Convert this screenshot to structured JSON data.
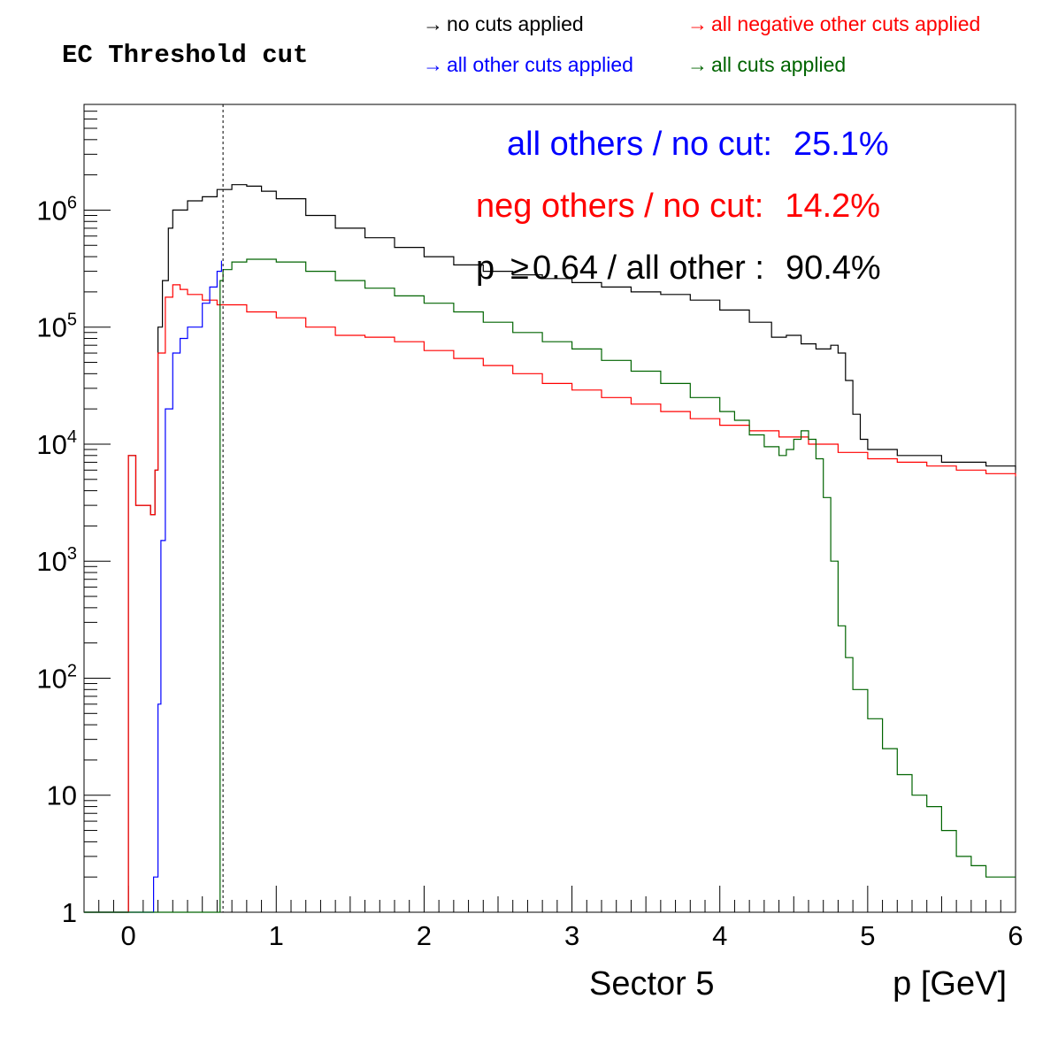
{
  "title": "EC Threshold cut",
  "legend": [
    {
      "label": "no cuts applied",
      "color": "#000000",
      "marker": "→"
    },
    {
      "label": "all negative other cuts applied",
      "color": "#ff0000",
      "marker": "→"
    },
    {
      "label": "all other cuts applied",
      "color": "#0000ff",
      "marker": "→"
    },
    {
      "label": "all cuts applied",
      "color": "#006400",
      "marker": "→"
    }
  ],
  "annotations": {
    "line1_text": "all others / no cut:",
    "line1_value": "25.1%",
    "line1_color": "#0000ff",
    "line2_text": "neg others / no cut:",
    "line2_value": "14.2%",
    "line2_color": "#ff0000",
    "line3_p": "p",
    "line3_ge": "≥",
    "line3_text": "0.64 / all other :",
    "line3_value": "90.4%",
    "line3_color": "#000000"
  },
  "chart_data": {
    "type": "line",
    "subtype": "step histogram",
    "xlabel": "p [GeV]",
    "sector_label": "Sector 5",
    "xlim": [
      -0.3,
      6
    ],
    "ylim": [
      1,
      8000000
    ],
    "yscale": "log",
    "x_ticks": [
      "0",
      "1",
      "2",
      "3",
      "4",
      "5",
      "6"
    ],
    "y_ticks": [
      "1",
      "10",
      "10^2",
      "10^3",
      "10^4",
      "10^5",
      "10^6"
    ],
    "cut_line_x": 0.64,
    "series": [
      {
        "color": "#000000",
        "points": [
          [
            -0.3,
            1
          ],
          [
            0.0,
            1
          ],
          [
            0.0,
            8000
          ],
          [
            0.05,
            3000
          ],
          [
            0.15,
            2500
          ],
          [
            0.18,
            6000
          ],
          [
            0.2,
            100000
          ],
          [
            0.23,
            250000
          ],
          [
            0.27,
            700000
          ],
          [
            0.3,
            1000000
          ],
          [
            0.4,
            1200000
          ],
          [
            0.5,
            1300000
          ],
          [
            0.6,
            1500000
          ],
          [
            0.7,
            1650000
          ],
          [
            0.8,
            1600000
          ],
          [
            0.9,
            1450000
          ],
          [
            1.0,
            1250000
          ],
          [
            1.2,
            900000
          ],
          [
            1.4,
            700000
          ],
          [
            1.6,
            580000
          ],
          [
            1.8,
            480000
          ],
          [
            2.0,
            400000
          ],
          [
            2.2,
            340000
          ],
          [
            2.4,
            300000
          ],
          [
            2.6,
            280000
          ],
          [
            2.8,
            260000
          ],
          [
            3.0,
            240000
          ],
          [
            3.2,
            220000
          ],
          [
            3.4,
            200000
          ],
          [
            3.6,
            190000
          ],
          [
            3.8,
            170000
          ],
          [
            4.0,
            140000
          ],
          [
            4.2,
            110000
          ],
          [
            4.35,
            82000
          ],
          [
            4.45,
            85000
          ],
          [
            4.55,
            72000
          ],
          [
            4.65,
            65000
          ],
          [
            4.75,
            70000
          ],
          [
            4.8,
            60000
          ],
          [
            4.85,
            35000
          ],
          [
            4.9,
            18000
          ],
          [
            4.95,
            11000
          ],
          [
            5.0,
            9000
          ],
          [
            5.2,
            8000
          ],
          [
            5.5,
            7000
          ],
          [
            5.8,
            6500
          ],
          [
            6.0,
            6000
          ]
        ]
      },
      {
        "color": "#ff0000",
        "points": [
          [
            -0.3,
            1
          ],
          [
            0.0,
            1
          ],
          [
            0.0,
            8000
          ],
          [
            0.05,
            3000
          ],
          [
            0.15,
            2500
          ],
          [
            0.18,
            6000
          ],
          [
            0.2,
            60000
          ],
          [
            0.25,
            180000
          ],
          [
            0.3,
            230000
          ],
          [
            0.35,
            210000
          ],
          [
            0.4,
            190000
          ],
          [
            0.5,
            170000
          ],
          [
            0.6,
            155000
          ],
          [
            0.8,
            135000
          ],
          [
            1.0,
            120000
          ],
          [
            1.2,
            100000
          ],
          [
            1.4,
            85000
          ],
          [
            1.6,
            82000
          ],
          [
            1.8,
            75000
          ],
          [
            2.0,
            63000
          ],
          [
            2.2,
            54000
          ],
          [
            2.4,
            47000
          ],
          [
            2.6,
            40000
          ],
          [
            2.8,
            33000
          ],
          [
            3.0,
            29000
          ],
          [
            3.2,
            25000
          ],
          [
            3.4,
            22000
          ],
          [
            3.6,
            19000
          ],
          [
            3.8,
            16500
          ],
          [
            4.0,
            14500
          ],
          [
            4.2,
            13000
          ],
          [
            4.4,
            11500
          ],
          [
            4.6,
            10000
          ],
          [
            4.8,
            8500
          ],
          [
            5.0,
            7500
          ],
          [
            5.2,
            7000
          ],
          [
            5.4,
            6500
          ],
          [
            5.6,
            6000
          ],
          [
            5.8,
            5600
          ],
          [
            6.0,
            5300
          ]
        ]
      },
      {
        "color": "#0000ff",
        "points": [
          [
            -0.3,
            1
          ],
          [
            0.17,
            1
          ],
          [
            0.17,
            2
          ],
          [
            0.2,
            60
          ],
          [
            0.22,
            1500
          ],
          [
            0.25,
            20000
          ],
          [
            0.3,
            60000
          ],
          [
            0.35,
            80000
          ],
          [
            0.4,
            100000
          ],
          [
            0.5,
            160000
          ],
          [
            0.55,
            220000
          ],
          [
            0.6,
            300000
          ],
          [
            0.63,
            370000
          ]
        ]
      },
      {
        "color": "#006400",
        "points": [
          [
            -0.3,
            1
          ],
          [
            0.62,
            1
          ],
          [
            0.62,
            250000
          ],
          [
            0.64,
            310000
          ],
          [
            0.7,
            360000
          ],
          [
            0.8,
            380000
          ],
          [
            1.0,
            360000
          ],
          [
            1.2,
            300000
          ],
          [
            1.4,
            250000
          ],
          [
            1.6,
            215000
          ],
          [
            1.8,
            185000
          ],
          [
            2.0,
            160000
          ],
          [
            2.2,
            135000
          ],
          [
            2.4,
            110000
          ],
          [
            2.6,
            90000
          ],
          [
            2.8,
            75000
          ],
          [
            3.0,
            65000
          ],
          [
            3.2,
            52000
          ],
          [
            3.4,
            42000
          ],
          [
            3.6,
            33000
          ],
          [
            3.8,
            25000
          ],
          [
            4.0,
            19000
          ],
          [
            4.1,
            16000
          ],
          [
            4.2,
            12000
          ],
          [
            4.3,
            9500
          ],
          [
            4.4,
            8000
          ],
          [
            4.45,
            9000
          ],
          [
            4.5,
            11000
          ],
          [
            4.55,
            13000
          ],
          [
            4.6,
            11000
          ],
          [
            4.65,
            7500
          ],
          [
            4.7,
            3500
          ],
          [
            4.75,
            1000
          ],
          [
            4.8,
            280
          ],
          [
            4.85,
            150
          ],
          [
            4.9,
            80
          ],
          [
            5.0,
            45
          ],
          [
            5.1,
            25
          ],
          [
            5.2,
            15
          ],
          [
            5.3,
            10
          ],
          [
            5.4,
            8
          ],
          [
            5.5,
            5
          ],
          [
            5.6,
            3
          ],
          [
            5.7,
            2.5
          ],
          [
            5.8,
            2
          ],
          [
            5.9,
            2
          ],
          [
            6.0,
            2
          ]
        ]
      }
    ]
  }
}
